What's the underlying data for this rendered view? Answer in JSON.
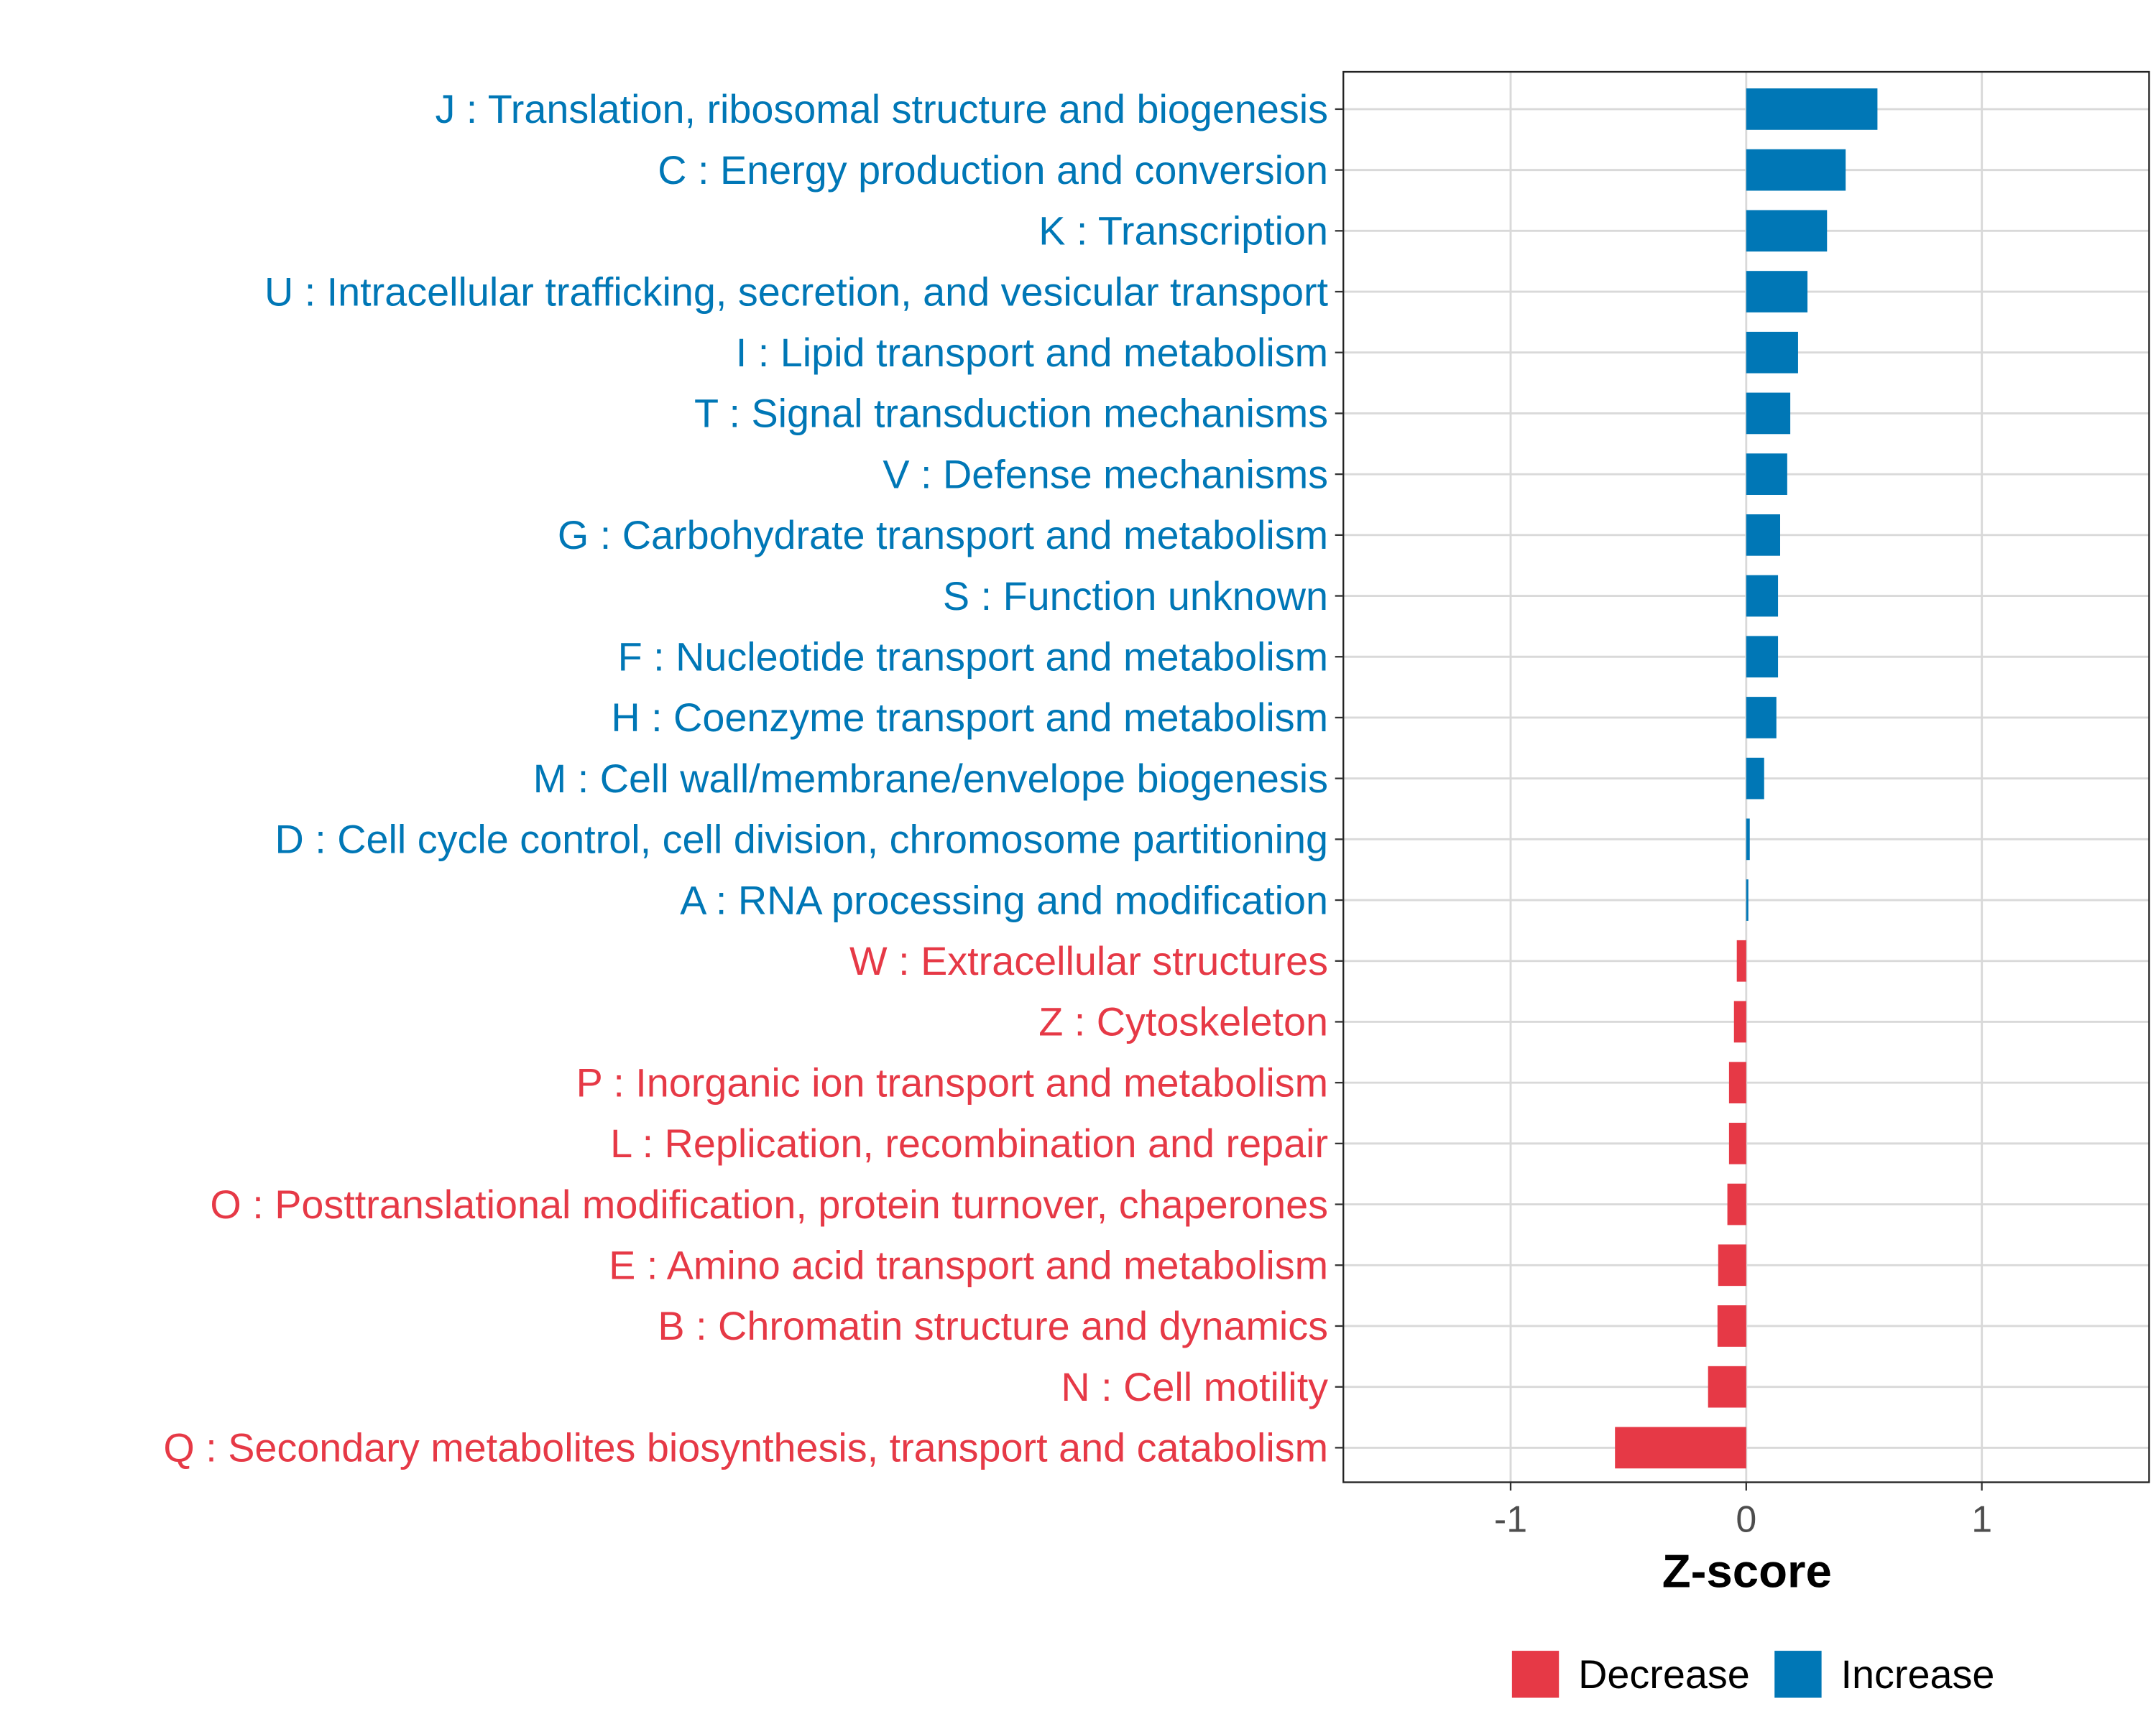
{
  "chart_data": {
    "type": "bar",
    "orientation": "horizontal",
    "xlabel": "Z-score",
    "ylabel": "",
    "xlim": [
      -1.71,
      1.71
    ],
    "xticks": [
      -1,
      0,
      1
    ],
    "xtick_labels": [
      "-1",
      "0",
      "1"
    ],
    "grid": true,
    "legend": {
      "placement": "bottom",
      "entries": [
        {
          "label": "Decrease",
          "color": "#E63946"
        },
        {
          "label": "Increase",
          "color": "#0077B6"
        }
      ]
    },
    "categories": [
      "J : Translation, ribosomal structure and biogenesis",
      "C : Energy production and conversion",
      "K : Transcription",
      "U : Intracellular trafficking, secretion, and vesicular transport",
      "I : Lipid transport and metabolism",
      "T : Signal transduction mechanisms",
      "V : Defense mechanisms",
      "G : Carbohydrate transport and metabolism",
      "S : Function unknown",
      "F : Nucleotide transport and metabolism",
      "H : Coenzyme transport and metabolism",
      "M : Cell wall/membrane/envelope biogenesis",
      "D : Cell cycle control, cell division, chromosome partitioning",
      "A : RNA processing and modification",
      "W : Extracellular structures",
      "Z : Cytoskeleton",
      "P : Inorganic ion transport and metabolism",
      "L : Replication, recombination and repair",
      "O : Posttranslational modification, protein turnover, chaperones",
      "E : Amino acid transport and metabolism",
      "B : Chromatin structure and dynamics",
      "N : Cell motility",
      "Q : Secondary metabolites biosynthesis, transport and catabolism"
    ],
    "values": [
      0.557,
      0.422,
      0.343,
      0.26,
      0.22,
      0.187,
      0.174,
      0.144,
      0.135,
      0.135,
      0.128,
      0.076,
      0.015,
      0.009,
      -0.04,
      -0.052,
      -0.073,
      -0.073,
      -0.08,
      -0.119,
      -0.122,
      -0.162,
      -0.557
    ]
  }
}
